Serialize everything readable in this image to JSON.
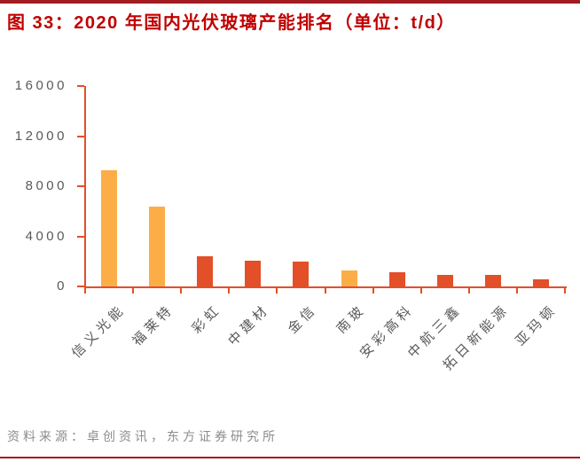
{
  "title": "图 33：2020 年国内光伏玻璃产能排名（单位：t/d）",
  "source": "资料来源：卓创资讯，东方证券研究所",
  "colors": {
    "title": "#C00000",
    "rule": "#A21D22",
    "axis": "#E34F28",
    "tick_text": "#595959",
    "source_text": "#8C8C8C"
  },
  "chart_data": {
    "type": "bar",
    "title": "2020 年国内光伏玻璃产能排名",
    "unit": "t/d",
    "categories": [
      "信义光能",
      "福莱特",
      "彩虹",
      "中建材",
      "金信",
      "南玻",
      "安彩高科",
      "中航三鑫",
      "拓日新能源",
      "亚玛顿"
    ],
    "values": [
      9300,
      6400,
      2400,
      2050,
      2000,
      1300,
      1100,
      950,
      900,
      600
    ],
    "bar_colors": [
      "#FBAE47",
      "#FBAE47",
      "#E34F28",
      "#E34F28",
      "#E34F28",
      "#FBAE47",
      "#E34F28",
      "#E34F28",
      "#E34F28",
      "#E34F28"
    ],
    "yticks": [
      0,
      4000,
      8000,
      12000,
      16000
    ],
    "ylim": [
      0,
      16000
    ],
    "xlabel": "",
    "ylabel": "",
    "grid": false,
    "legend": "none",
    "x_label_rotation_deg": 45
  }
}
